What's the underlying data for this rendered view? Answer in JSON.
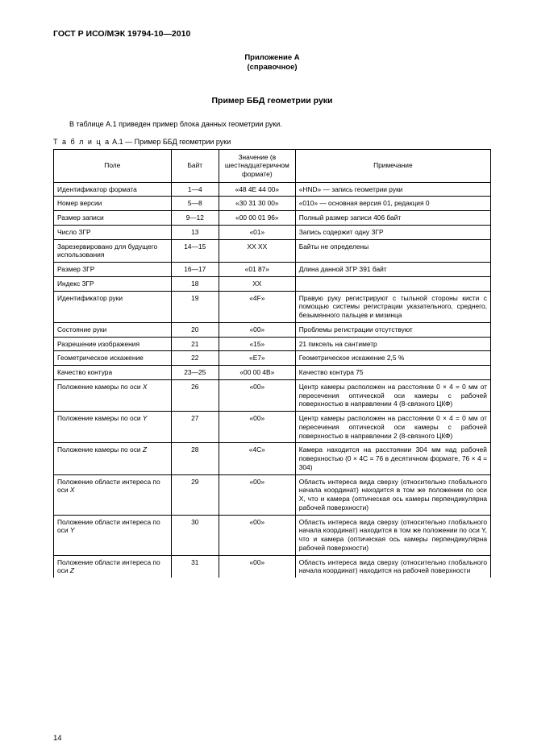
{
  "doc_id": "ГОСТ Р ИСО/МЭК 19794-10—2010",
  "annex_title": "Приложение А",
  "annex_sub": "(справочное)",
  "title": "Пример ББД геометрии руки",
  "intro": "В таблице А.1 приведен пример блока данных геометрии руки.",
  "table_caption_spaced": "Т а б л и ц а",
  "table_caption_rest": " А.1 — Пример ББД геометрии руки",
  "headers": {
    "field": "Поле",
    "byte": "Байт",
    "hex": "Значение\n(в шестнадцатеричном\nформате)",
    "note": "Примечание"
  },
  "rows": [
    {
      "f": "Идентификатор формата",
      "b": "1—4",
      "h": "«48 4E 44 00»",
      "n": "«HND» — запись геометрии руки"
    },
    {
      "f": "Номер версии",
      "b": "5—8",
      "h": "«30 31 30 00»",
      "n": "«010» — основная версия 01, редакция 0"
    },
    {
      "f": "Размер записи",
      "b": "9—12",
      "h": "«00 00 01 96»",
      "n": "Полный размер записи 406 байт"
    },
    {
      "f": "Число ЗГР",
      "b": "13",
      "h": "«01»",
      "n": "Запись содержит одну ЗГР"
    },
    {
      "f": "Зарезервировано для будущего использования",
      "b": "14—15",
      "h": "XX XX",
      "n": "Байты не определены"
    },
    {
      "f": "Размер ЗГР",
      "b": "16—17",
      "h": "«01 87»",
      "n": "Длина данной ЗГР 391 байт"
    },
    {
      "f": "Индекс ЗГР",
      "b": "18",
      "h": "XX",
      "n": ""
    },
    {
      "f": "Идентификатор руки",
      "b": "19",
      "h": "«4F»",
      "n": "Правую руку регистрируют с тыльной стороны кисти с помощью системы регистрации указательного, среднего, безымянного пальцев и мизинца"
    },
    {
      "f": "Состояние руки",
      "b": "20",
      "h": "«00»",
      "n": "Проблемы регистрации отсутствуют"
    },
    {
      "f": "Разрешение изображения",
      "b": "21",
      "h": "«15»",
      "n": "21 пиксель на сантиметр"
    },
    {
      "f": "Геометрическое искажение",
      "b": "22",
      "h": "«E7»",
      "n": "Геометрическое искажение 2,5 %"
    },
    {
      "f": "Качество контура",
      "b": "23—25",
      "h": "«00 00 4B»",
      "n": "Качество контура 75"
    },
    {
      "f": "Положение камеры по оси X",
      "it": true,
      "b": "26",
      "h": "«00»",
      "n": "Центр камеры расположен на расстоянии 0 × 4 = 0 мм от пересечения оптической оси камеры с рабочей поверхностью в направлении 4 (8-связного ЦКФ)"
    },
    {
      "f": "Положение камеры по оси Y",
      "it": true,
      "b": "27",
      "h": "«00»",
      "n": "Центр камеры расположен на расстоянии 0 × 4 = 0 мм от пересечения оптической оси камеры с рабочей поверхностью в направлении 2 (8-связного ЦКФ)"
    },
    {
      "f": "Положение камеры по оси Z",
      "it": true,
      "b": "28",
      "h": "«4C»",
      "n": "Камера находится на расстоянии 304 мм над рабочей поверхностью (0 × 4C = 76 в десятичном формате, 76 × 4 = 304)"
    },
    {
      "f": "Положение области интереса по оси X",
      "it": true,
      "b": "29",
      "h": "«00»",
      "n": "Область интереса вида сверху (относительно глобального начала координат) находится в том же положении по оси X, что и камера (оптическая ось камеры перпендикулярна рабочей поверхности)"
    },
    {
      "f": "Положение области интереса по оси Y",
      "it": true,
      "b": "30",
      "h": "«00»",
      "n": "Область интереса вида сверху (относительно глобального начала координат) находится в том же положении по оси Y, что и камера (оптическая ось камеры перпендикулярна рабочей поверхности)"
    },
    {
      "f": "Положение области интереса по оси Z",
      "it": true,
      "b": "31",
      "h": "«00»",
      "n": "Область интереса вида сверху (относительно глобального начала координат) находится на рабочей поверхности"
    }
  ],
  "page_number": "14"
}
